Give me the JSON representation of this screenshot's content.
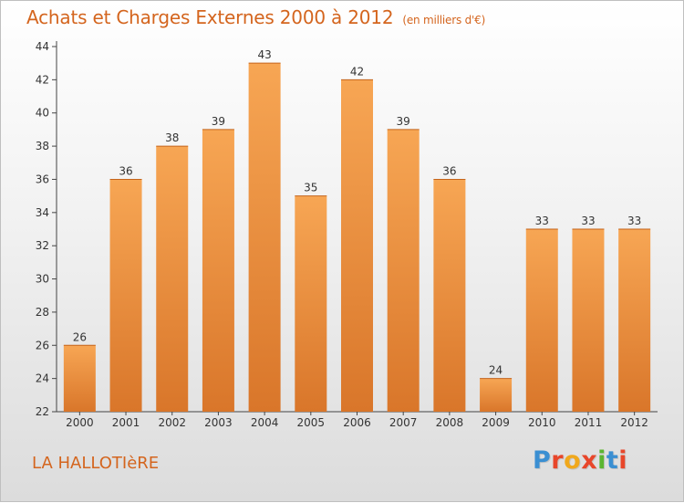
{
  "title": "Achats et Charges Externes 2000 à 2012",
  "unit_note": "(en milliers d'€)",
  "commune": "LA HALLOTIèRE",
  "logo": {
    "text": "Proxiti",
    "colors": [
      "#3a8fd2",
      "#e8462a",
      "#f0a81c",
      "#e8462a",
      "#5bb531",
      "#3a8fd2",
      "#e8462a"
    ]
  },
  "colors": {
    "bar_light": "#f7a654",
    "bar_dark": "#d9762a",
    "accent": "#d4651e"
  },
  "chart_data": {
    "type": "bar",
    "categories": [
      "2000",
      "2001",
      "2002",
      "2003",
      "2004",
      "2005",
      "2006",
      "2007",
      "2008",
      "2009",
      "2010",
      "2011",
      "2012"
    ],
    "values": [
      26,
      36,
      38,
      39,
      43,
      35,
      42,
      39,
      36,
      24,
      33,
      33,
      33
    ],
    "ylim": [
      22,
      44
    ],
    "yticks": [
      22,
      24,
      26,
      28,
      30,
      32,
      34,
      36,
      38,
      40,
      42,
      44
    ],
    "grid": false,
    "legend": "none"
  }
}
